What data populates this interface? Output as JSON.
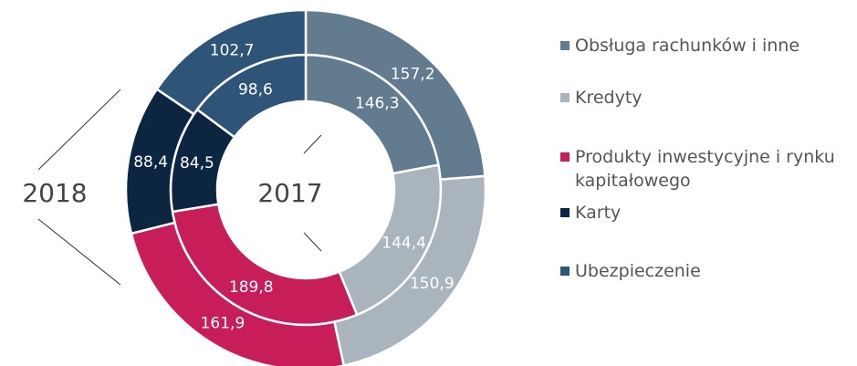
{
  "chart_data": {
    "type": "nested-donut",
    "categories": [
      "Obsługa rachunków i inne",
      "Kredyty",
      "Produkty inwestycyjne i rynku kapitałowego",
      "Karty",
      "Ubezpieczenie"
    ],
    "colors": [
      "#637b8e",
      "#aab4bd",
      "#c71e5a",
      "#0c2641",
      "#2e5577"
    ],
    "series": [
      {
        "name": "2017",
        "values": [
          146.3,
          144.4,
          189.8,
          84.5,
          98.6
        ],
        "value_labels": [
          "146,3",
          "144,4",
          "189,8",
          "84,5",
          "98,6"
        ]
      },
      {
        "name": "2018",
        "values": [
          157.2,
          150.9,
          161.9,
          88.4,
          102.7
        ],
        "value_labels": [
          "157,2",
          "150,9",
          "161,9",
          "88,4",
          "102,7"
        ]
      }
    ]
  }
}
